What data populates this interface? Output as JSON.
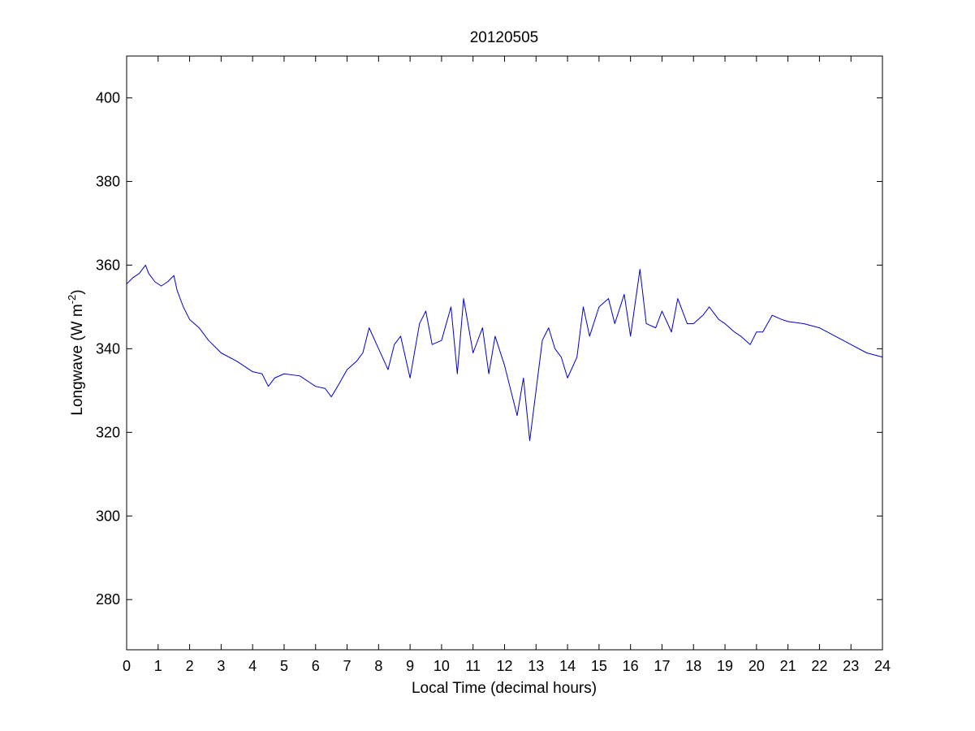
{
  "chart_data": {
    "type": "line",
    "title": "20120505",
    "xlabel": "Local Time (decimal hours)",
    "ylabel": "Longwave (W m",
    "ylabel_sup": "-2",
    "ylabel_suffix": ")",
    "xlim": [
      0,
      24
    ],
    "ylim": [
      268,
      410
    ],
    "xticks": [
      0,
      1,
      2,
      3,
      4,
      5,
      6,
      7,
      8,
      9,
      10,
      11,
      12,
      13,
      14,
      15,
      16,
      17,
      18,
      19,
      20,
      21,
      22,
      23,
      24
    ],
    "yticks": [
      280,
      300,
      320,
      340,
      360,
      380,
      400
    ],
    "grid": false,
    "line_color": "#0000cc",
    "series": [
      {
        "x": [
          0,
          0.2,
          0.4,
          0.6,
          0.7,
          0.9,
          1.1,
          1.3,
          1.5,
          1.6,
          1.8,
          2.0,
          2.3,
          2.6,
          3.0,
          3.5,
          4.0,
          4.3,
          4.5,
          4.7,
          5.0,
          5.5,
          6.0,
          6.3,
          6.5,
          6.7,
          7.0,
          7.3,
          7.5,
          7.7,
          8.0,
          8.3,
          8.5,
          8.7,
          9.0,
          9.3,
          9.5,
          9.7,
          10.0,
          10.3,
          10.5,
          10.7,
          11.0,
          11.3,
          11.5,
          11.7,
          12.0,
          12.2,
          12.4,
          12.6,
          12.8,
          13.0,
          13.2,
          13.4,
          13.6,
          13.8,
          14.0,
          14.3,
          14.5,
          14.7,
          15.0,
          15.3,
          15.5,
          15.8,
          16.0,
          16.3,
          16.5,
          16.8,
          17.0,
          17.3,
          17.5,
          17.8,
          18.0,
          18.3,
          18.5,
          18.8,
          19.0,
          19.3,
          19.5,
          19.8,
          20.0,
          20.2,
          20.5,
          20.8,
          21.0,
          21.5,
          22.0,
          22.5,
          23.0,
          23.5,
          24.0
        ],
        "values": [
          355.5,
          357,
          358,
          360,
          358,
          356,
          355,
          356,
          357.5,
          354,
          350,
          347,
          345,
          342,
          339,
          337,
          334.5,
          334,
          331,
          333,
          334,
          333.5,
          331,
          330.5,
          328.5,
          331,
          335,
          337,
          339,
          345,
          340,
          335,
          341,
          343,
          333,
          346,
          349,
          341,
          342,
          350,
          334,
          352,
          339,
          345,
          334,
          343,
          336,
          330,
          324,
          333,
          318,
          330,
          342,
          345,
          340,
          338,
          333,
          338,
          350,
          343,
          350,
          352,
          346,
          353,
          343,
          359,
          346,
          345,
          349,
          344,
          352,
          346,
          346,
          348,
          350,
          347,
          346,
          344,
          343,
          341,
          344,
          344,
          348,
          347,
          346.5,
          346,
          345,
          343,
          341,
          339,
          338
        ]
      }
    ]
  }
}
